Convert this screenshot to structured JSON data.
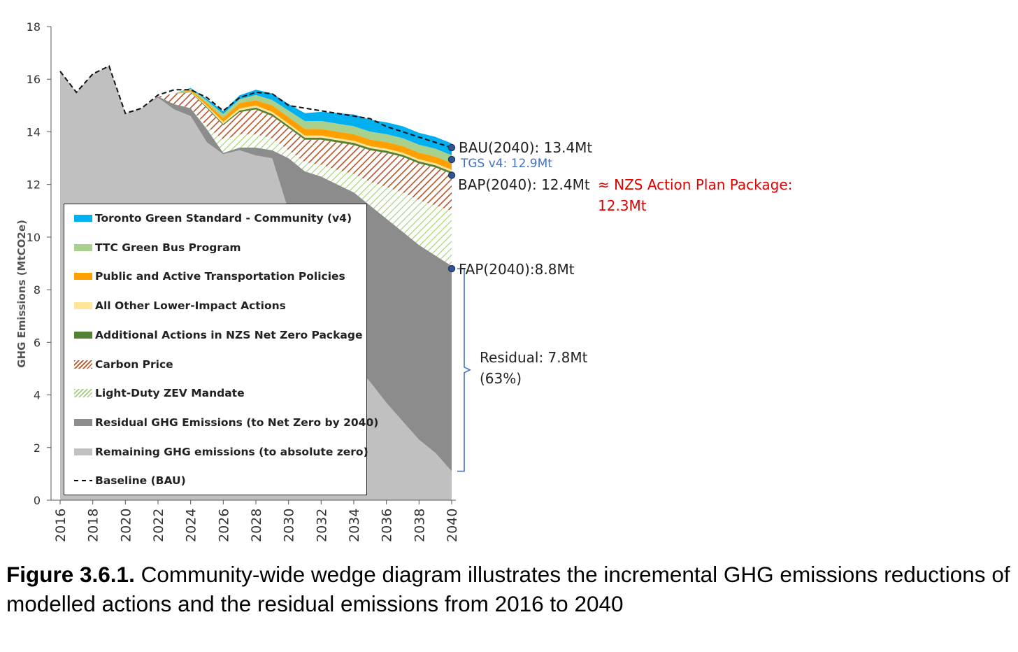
{
  "chart_data": {
    "type": "area",
    "ylabel": "GHG Emissions (MtCO2e)",
    "xlabel": "",
    "ylim": [
      0,
      18
    ],
    "xlim": [
      2016,
      2040
    ],
    "yticks": [
      "0",
      "2",
      "4",
      "6",
      "8",
      "10",
      "12",
      "14",
      "16",
      "18"
    ],
    "xticks": [
      "2016",
      "2018",
      "2020",
      "2022",
      "2024",
      "2026",
      "2028",
      "2030",
      "2032",
      "2034",
      "2036",
      "2038",
      "2040"
    ],
    "x": [
      2016,
      2017,
      2018,
      2019,
      2020,
      2021,
      2022,
      2023,
      2024,
      2025,
      2026,
      2027,
      2028,
      2029,
      2030,
      2031,
      2032,
      2033,
      2034,
      2035,
      2036,
      2037,
      2038,
      2039,
      2040
    ],
    "series": [
      {
        "name": "Remaining GHG emissions (to absolute zero)",
        "color": "#c0c0c0",
        "pattern": "solid",
        "values": [
          16.3,
          15.5,
          16.2,
          16.5,
          14.7,
          14.9,
          15.3,
          14.85,
          14.6,
          13.6,
          13.15,
          13.3,
          13.1,
          13.0,
          11.0,
          9.5,
          8.0,
          6.5,
          5.2,
          4.5,
          3.7,
          3.0,
          2.3,
          1.8,
          1.1
        ]
      },
      {
        "name": "Residual GHG Emissions (to Net Zero by 2040)",
        "color": "#8c8c8c",
        "pattern": "solid",
        "values": [
          0,
          0,
          0,
          0,
          0,
          0,
          0.05,
          0.2,
          0.3,
          0.5,
          0.05,
          0.1,
          0.3,
          0.3,
          2.0,
          3.0,
          4.3,
          5.5,
          6.5,
          6.7,
          7.0,
          7.2,
          7.4,
          7.5,
          7.8
        ]
      },
      {
        "name": "Light-Duty ZEV Mandate",
        "color": "#9fd06e",
        "pattern": "hatch",
        "values": [
          0,
          0,
          0,
          0,
          0,
          0,
          0,
          0,
          0,
          0.1,
          0.5,
          0.5,
          0.5,
          0.45,
          0.3,
          0.35,
          0.45,
          0.55,
          0.7,
          0.9,
          1.2,
          1.5,
          1.7,
          1.9,
          2.1
        ]
      },
      {
        "name": "Carbon Price",
        "color": "#b5542a",
        "pattern": "hatch",
        "values": [
          0,
          0,
          0,
          0,
          0,
          0,
          0,
          0.4,
          0.6,
          0.7,
          0.55,
          0.85,
          0.95,
          0.85,
          0.85,
          0.85,
          0.95,
          1.05,
          1.1,
          1.2,
          1.3,
          1.35,
          1.4,
          1.45,
          1.4
        ]
      },
      {
        "name": "Additional Actions in NZS Net Zero Package",
        "color": "#548235",
        "pattern": "solid",
        "values": [
          0,
          0,
          0,
          0,
          0,
          0,
          0,
          0,
          0.02,
          0.04,
          0.05,
          0.06,
          0.07,
          0.08,
          0.08,
          0.08,
          0.08,
          0.08,
          0.08,
          0.08,
          0.08,
          0.08,
          0.08,
          0.08,
          0.08
        ]
      },
      {
        "name": "All Other Lower-Impact Actions",
        "color": "#ffe699",
        "pattern": "solid",
        "values": [
          0,
          0,
          0,
          0,
          0,
          0,
          0,
          0,
          0.02,
          0.05,
          0.08,
          0.08,
          0.08,
          0.08,
          0.08,
          0.08,
          0.08,
          0.08,
          0.08,
          0.08,
          0.08,
          0.08,
          0.08,
          0.08,
          0.08
        ]
      },
      {
        "name": "Public and Active Transportation Policies",
        "color": "#ffa000",
        "pattern": "solid",
        "values": [
          0,
          0,
          0,
          0,
          0,
          0,
          0,
          0,
          0.05,
          0.1,
          0.15,
          0.2,
          0.2,
          0.25,
          0.25,
          0.25,
          0.25,
          0.25,
          0.25,
          0.25,
          0.25,
          0.25,
          0.25,
          0.25,
          0.25
        ]
      },
      {
        "name": "TTC Green Bus Program",
        "color": "#a9d18e",
        "pattern": "solid",
        "values": [
          0,
          0,
          0,
          0,
          0,
          0,
          0,
          0,
          0.05,
          0.1,
          0.15,
          0.15,
          0.2,
          0.2,
          0.25,
          0.3,
          0.3,
          0.3,
          0.3,
          0.3,
          0.3,
          0.3,
          0.3,
          0.3,
          0.3
        ]
      },
      {
        "name": "Toronto Green Standard - Community (v4)",
        "color": "#00b0f0",
        "pattern": "solid",
        "values": [
          0,
          0,
          0,
          0,
          0,
          0,
          0,
          0,
          0.03,
          0.06,
          0.1,
          0.15,
          0.2,
          0.25,
          0.25,
          0.3,
          0.35,
          0.4,
          0.45,
          0.45,
          0.45,
          0.45,
          0.45,
          0.45,
          0.45
        ]
      }
    ],
    "baseline": {
      "name": "Baseline (BAU)",
      "values": [
        16.3,
        15.5,
        16.2,
        16.5,
        14.7,
        14.9,
        15.4,
        15.6,
        15.6,
        15.3,
        14.8,
        15.3,
        15.5,
        15.45,
        15.0,
        14.9,
        14.8,
        14.7,
        14.6,
        14.5,
        14.2,
        14.0,
        13.8,
        13.6,
        13.4
      ]
    },
    "markers": [
      {
        "id": "bau",
        "x": 2040,
        "y": 13.4
      },
      {
        "id": "tgs",
        "x": 2040,
        "y": 12.95
      },
      {
        "id": "bap",
        "x": 2040,
        "y": 12.35
      },
      {
        "id": "fap",
        "x": 2040,
        "y": 8.8
      }
    ],
    "residual_bracket": {
      "x": 2040,
      "y_top": 8.8,
      "y_bottom": 1.1
    },
    "annotations": {
      "bau": "BAU(2040): 13.4Mt",
      "tgs": "TGS v4: 12.9Mt",
      "bap": "BAP(2040): 12.4Mt",
      "nzs_line1": "≈ NZS Action Plan Package:",
      "nzs_line2": "12.3Mt",
      "fap": "FAP(2040):8.8Mt",
      "residual_line1": "Residual: 7.8Mt",
      "residual_line2": "(63%)"
    },
    "legend": {
      "placement": "inside-left",
      "items": [
        {
          "label": "Toronto Green Standard - Community (v4)",
          "color": "#00b0f0",
          "style": "solid"
        },
        {
          "label": "TTC Green Bus Program",
          "color": "#a9d18e",
          "style": "solid"
        },
        {
          "label": "Public and Active Transportation Policies",
          "color": "#ffa000",
          "style": "solid"
        },
        {
          "label": "All Other Lower-Impact Actions",
          "color": "#ffe699",
          "style": "solid"
        },
        {
          "label": "Additional Actions in NZS Net Zero Package",
          "color": "#548235",
          "style": "solid"
        },
        {
          "label": "Carbon Price",
          "color": "#b5542a",
          "style": "hatch"
        },
        {
          "label": "Light-Duty ZEV Mandate",
          "color": "#9fd06e",
          "style": "hatch"
        },
        {
          "label": "Residual GHG Emissions (to Net Zero by 2040)",
          "color": "#8c8c8c",
          "style": "solid"
        },
        {
          "label": "Remaining GHG emissions (to absolute zero)",
          "color": "#c0c0c0",
          "style": "solid"
        },
        {
          "label": "Baseline (BAU)",
          "color": "#000000",
          "style": "dash"
        }
      ]
    },
    "colors": {
      "marker_fill": "#2f5597",
      "marker_stroke": "#1f3864",
      "tgs_text": "#4472c4",
      "nzs_text": "#e00000",
      "bracket": "#4472c4"
    }
  },
  "caption": {
    "bold": "Figure 3.6.1.",
    "text": " Community-wide wedge diagram illustrates the incremental GHG emissions reductions of modelled actions and the residual emissions from 2016 to 2040"
  }
}
